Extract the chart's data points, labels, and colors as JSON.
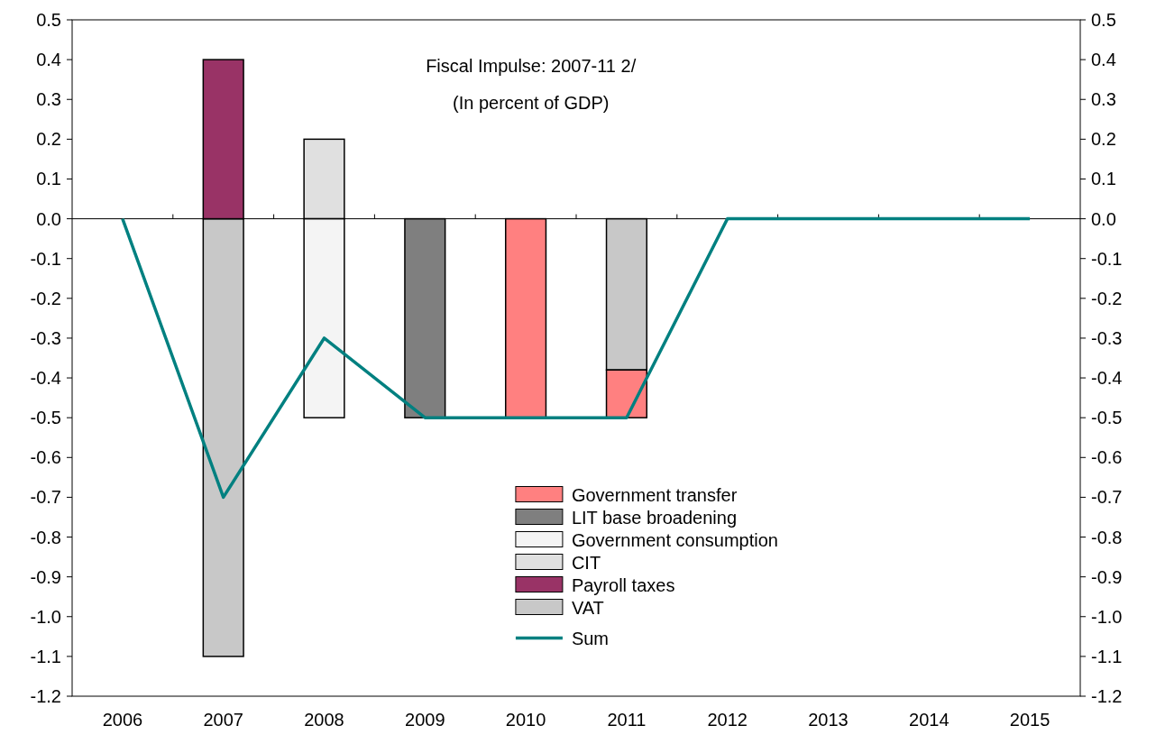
{
  "chart_data": {
    "type": "bar",
    "title": "Fiscal Impulse: 2007-11 2/",
    "subtitle": "(In percent of GDP)",
    "categories": [
      "2006",
      "2007",
      "2008",
      "2009",
      "2010",
      "2011",
      "2012",
      "2013",
      "2014",
      "2015"
    ],
    "stacked": true,
    "series": [
      {
        "name": "VAT",
        "color": "#c8c8c8",
        "values": [
          null,
          -1.1,
          null,
          null,
          null,
          -0.38,
          null,
          null,
          null,
          null
        ]
      },
      {
        "name": "Payroll taxes",
        "color": "#993366",
        "values": [
          null,
          0.4,
          null,
          null,
          null,
          null,
          null,
          null,
          null,
          null
        ]
      },
      {
        "name": "CIT",
        "color": "#e0e0e0",
        "values": [
          null,
          null,
          0.2,
          null,
          null,
          null,
          null,
          null,
          null,
          null
        ]
      },
      {
        "name": "Government consumption",
        "color": "#f4f4f4",
        "values": [
          null,
          null,
          -0.5,
          null,
          null,
          null,
          null,
          null,
          null,
          null
        ]
      },
      {
        "name": "LIT base broadening",
        "color": "#7f7f7f",
        "values": [
          null,
          null,
          null,
          -0.5,
          null,
          null,
          null,
          null,
          null,
          null
        ]
      },
      {
        "name": "Government transfer",
        "color": "#ff8080",
        "values": [
          null,
          null,
          null,
          null,
          -0.5,
          -0.12,
          null,
          null,
          null,
          null
        ]
      },
      {
        "name": "Sum",
        "type": "line",
        "color": "#008080",
        "values": [
          0,
          -0.7,
          -0.3,
          -0.5,
          -0.5,
          -0.5,
          0,
          0,
          0,
          0
        ]
      }
    ],
    "ylim": [
      -1.2,
      0.5
    ],
    "yticks": [
      {
        "value": -1.2,
        "label": "-1.2"
      },
      {
        "value": -1.1,
        "label": "-1.1"
      },
      {
        "value": -1,
        "label": "-1.0"
      },
      {
        "value": -0.9,
        "label": "-0.9"
      },
      {
        "value": -0.8,
        "label": "-0.8"
      },
      {
        "value": -0.7,
        "label": "-0.7"
      },
      {
        "value": -0.6,
        "label": "-0.6"
      },
      {
        "value": -0.5,
        "label": "-0.5"
      },
      {
        "value": -0.4,
        "label": "-0.4"
      },
      {
        "value": -0.3,
        "label": "-0.3"
      },
      {
        "value": -0.2,
        "label": "-0.2"
      },
      {
        "value": -0.1,
        "label": "-0.1"
      },
      {
        "value": 0,
        "label": "0.0"
      },
      {
        "value": 0.1,
        "label": "0.1"
      },
      {
        "value": 0.2,
        "label": "0.2"
      },
      {
        "value": 0.3,
        "label": "0.3"
      },
      {
        "value": 0.4,
        "label": "0.4"
      },
      {
        "value": 0.5,
        "label": "0.5"
      }
    ],
    "y2lim": [
      -1.2,
      0.5
    ],
    "y2ticks": [
      {
        "value": -1.2,
        "label": "-1.2"
      },
      {
        "value": -1.1,
        "label": "-1.1"
      },
      {
        "value": -1,
        "label": "-1.0"
      },
      {
        "value": -0.9,
        "label": "-0.9"
      },
      {
        "value": -0.8,
        "label": "-0.8"
      },
      {
        "value": -0.7,
        "label": "-0.7"
      },
      {
        "value": -0.6,
        "label": "-0.6"
      },
      {
        "value": -0.5,
        "label": "-0.5"
      },
      {
        "value": -0.4,
        "label": "-0.4"
      },
      {
        "value": -0.3,
        "label": "-0.3"
      },
      {
        "value": -0.2,
        "label": "-0.2"
      },
      {
        "value": -0.1,
        "label": "-0.1"
      },
      {
        "value": 0,
        "label": "0.0"
      },
      {
        "value": 0.1,
        "label": "0.1"
      },
      {
        "value": 0.2,
        "label": "0.2"
      },
      {
        "value": 0.3,
        "label": "0.3"
      },
      {
        "value": 0.4,
        "label": "0.4"
      },
      {
        "value": 0.5,
        "label": "0.5"
      }
    ],
    "legend": "bottom right",
    "marker": "none",
    "line_style": "solid"
  }
}
